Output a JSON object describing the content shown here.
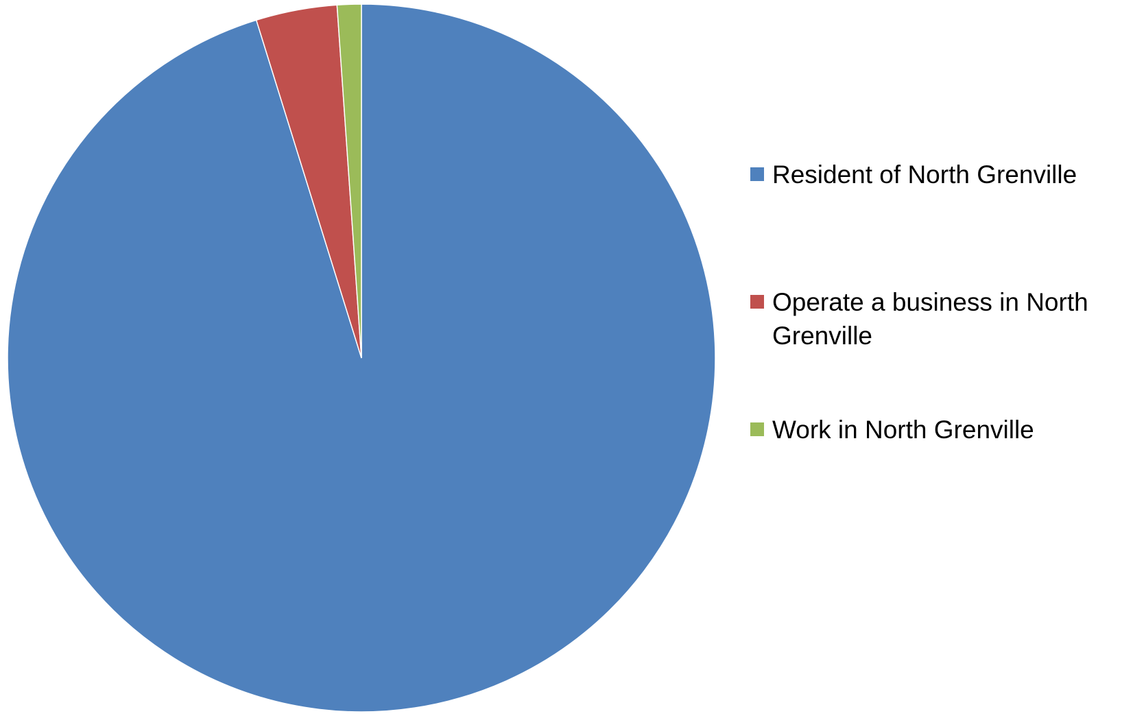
{
  "chart_data": {
    "type": "pie",
    "title": "",
    "categories": [
      "Resident of North Grenville",
      "Operate a business in North Grenville",
      "Work in North Grenville"
    ],
    "values": [
      95.2,
      3.7,
      1.1
    ],
    "unit": "percent",
    "colors": [
      "#4F81BD",
      "#C0504D",
      "#9BBB59"
    ],
    "start_angle": "12 o'clock",
    "direction": "clockwise",
    "legend_position": "right"
  },
  "legend": {
    "items": [
      {
        "label": "Resident of North Grenville",
        "color": "#4F81BD"
      },
      {
        "label": "Operate a business in North Grenville",
        "color": "#C0504D"
      },
      {
        "label": "Work in North Grenville",
        "color": "#9BBB59"
      }
    ]
  }
}
